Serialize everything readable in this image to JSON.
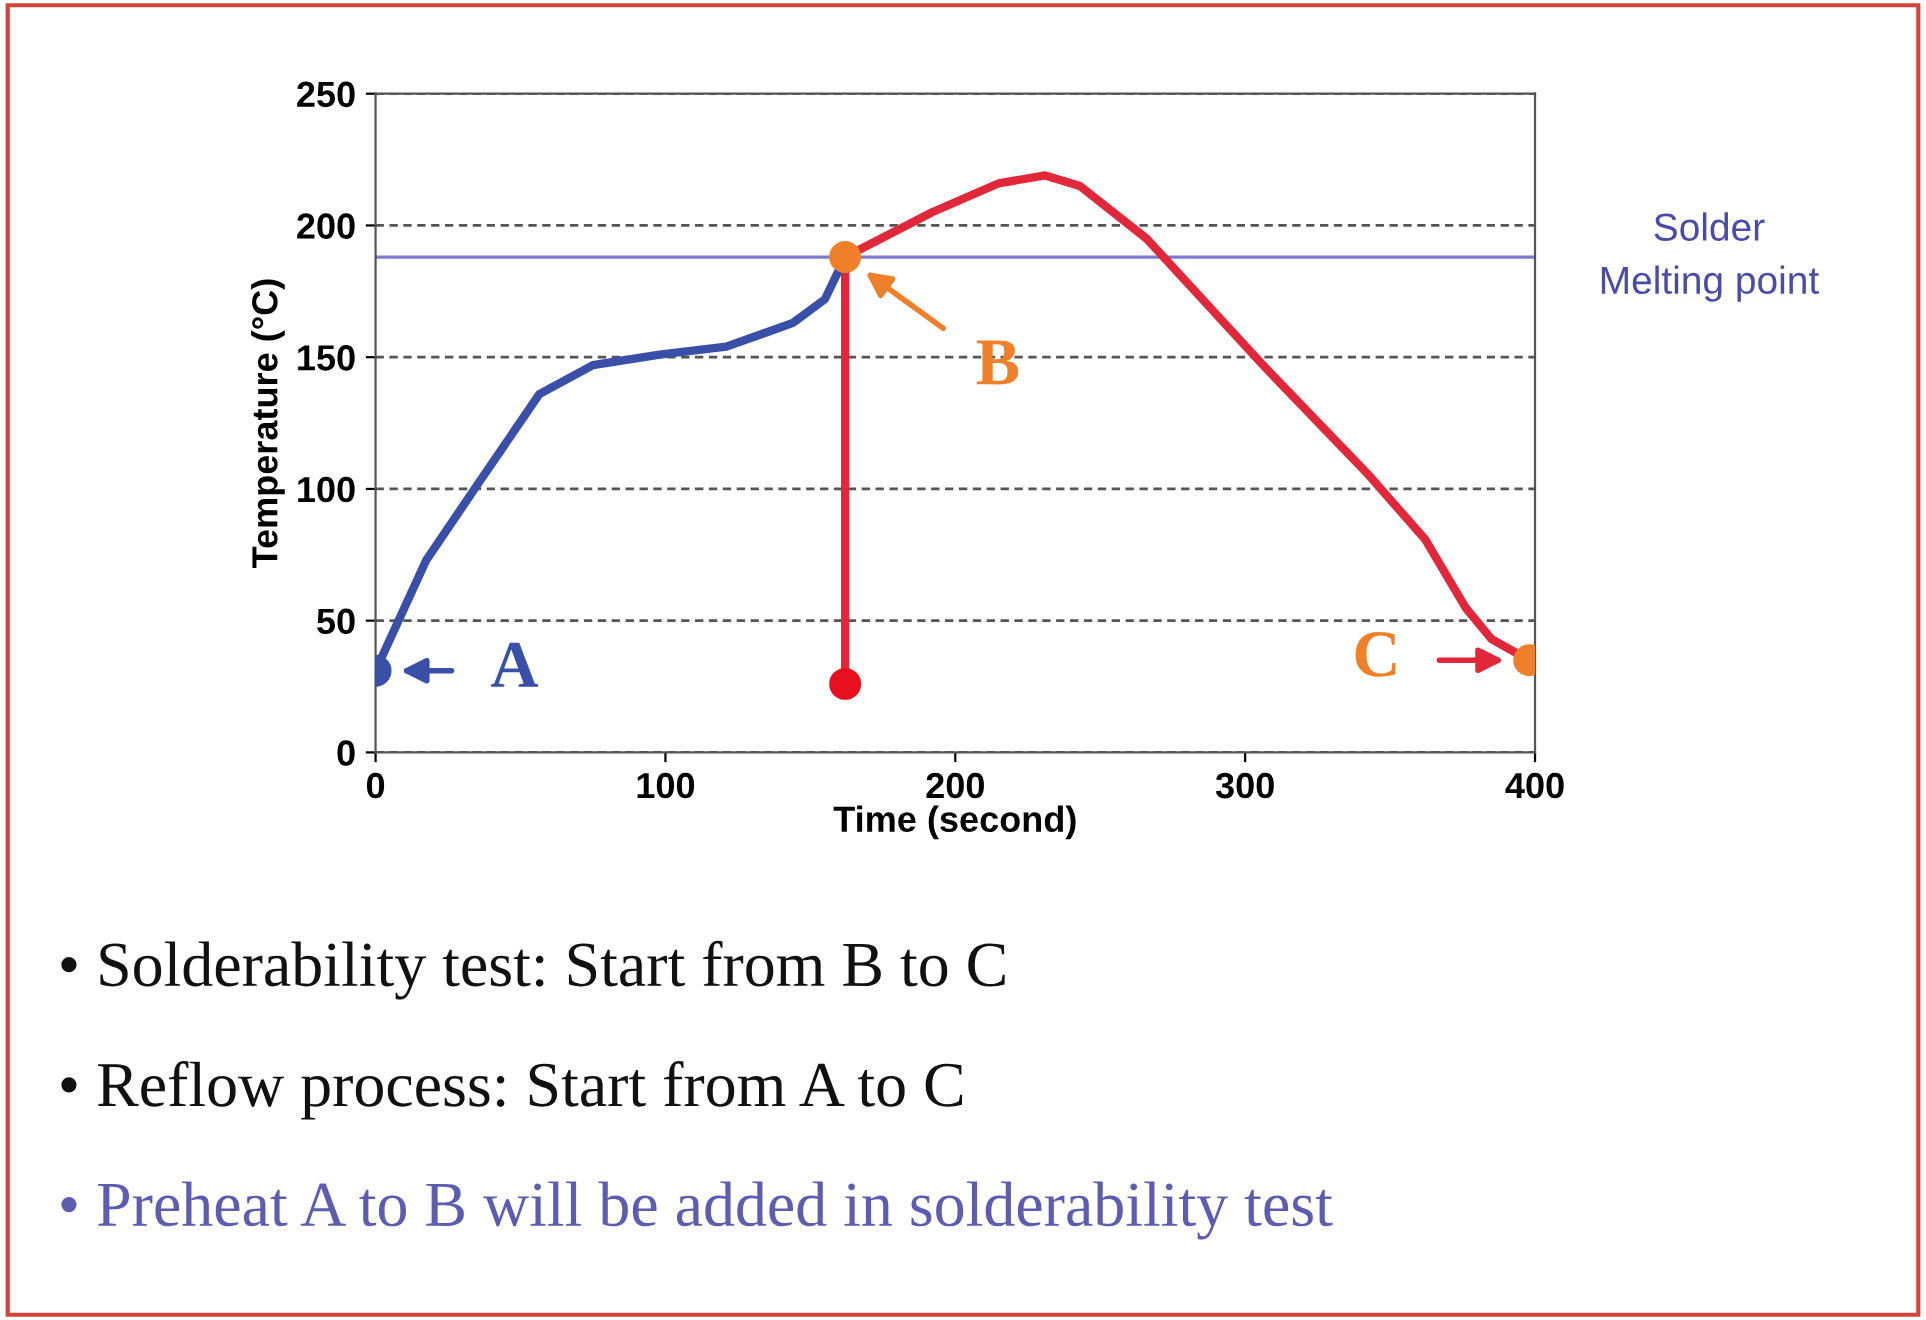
{
  "chart_data": {
    "type": "line",
    "xlabel": "Time (second)",
    "ylabel": "Temperature (°C)",
    "xlim": [
      0,
      400
    ],
    "ylim": [
      0,
      250
    ],
    "xticks": [
      0,
      100,
      200,
      300,
      400
    ],
    "yticks": [
      0,
      50,
      100,
      150,
      200,
      250
    ],
    "grid": "y",
    "line_style": "solid",
    "series": [
      {
        "color": "#3a4fa8",
        "x": [
          0,
          17.5,
          36,
          56.5,
          75,
          98,
          121,
          144,
          155,
          162
        ],
        "values": [
          31,
          73,
          103,
          136,
          147,
          151,
          154,
          163,
          172,
          188
        ]
      },
      {
        "color": "#e0283a",
        "x": [
          162,
          192,
          215,
          231,
          243,
          266,
          307,
          342,
          362,
          376,
          385,
          398
        ],
        "values": [
          188,
          205,
          216,
          219,
          215,
          195,
          146,
          106,
          81,
          55,
          43,
          35
        ]
      },
      {
        "color": "#e0283a",
        "x": [
          162,
          162
        ],
        "values": [
          188,
          26
        ]
      },
      {
        "type": "scatter",
        "color": "#3a4fa8",
        "x": [
          0
        ],
        "values": [
          31
        ]
      },
      {
        "type": "scatter",
        "color": "#e8101e",
        "x": [
          162
        ],
        "values": [
          26
        ]
      },
      {
        "type": "scatter",
        "color": "#f07f2a",
        "x": [
          162,
          398
        ],
        "values": [
          188,
          35
        ]
      }
    ],
    "ref_lines": [
      {
        "axis": "y",
        "value": 188,
        "label": "Solder\nMelting point",
        "color": "#7b7bd0",
        "line_style": "solid"
      }
    ],
    "annotations": [
      {
        "text": "A",
        "x": 0,
        "y": 31
      },
      {
        "text": "B",
        "x": 162,
        "y": 188
      },
      {
        "text": "C",
        "x": 398,
        "y": 35
      },
      "• Solderability test: Start from B to C",
      "• Reflow process: Start from A to C",
      "• Preheat A to B will be added in solderability test"
    ]
  }
}
